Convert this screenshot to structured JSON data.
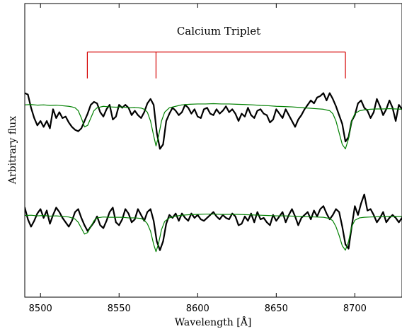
{
  "chart_data": {
    "type": "line",
    "xlabel": "Wavelength [Å]",
    "ylabel": "Arbitrary flux",
    "xlim": [
      8490,
      8730
    ],
    "ylim": [
      0,
      1
    ],
    "x_ticks": [
      8500,
      8550,
      8600,
      8650,
      8700
    ],
    "grid": false,
    "y_tick_labels_shown": false,
    "colors": {
      "observed": "#000000",
      "model": "#008000",
      "annotation": "#d40000"
    },
    "annotation": {
      "text": "Calcium Triplet",
      "bar_level": 0.835,
      "line_bottom": 0.745,
      "x": [
        8529.8,
        8573.5,
        8694.0
      ]
    },
    "series": [
      {
        "role": "observed",
        "offset_group": "upper",
        "x": [
          8490,
          8492,
          8494,
          8496,
          8498,
          8500,
          8502,
          8504,
          8506,
          8508,
          8510,
          8512,
          8514,
          8516,
          8518,
          8520,
          8522,
          8524,
          8526,
          8528,
          8530,
          8532,
          8534,
          8536,
          8538,
          8540,
          8542,
          8544,
          8546,
          8548,
          8550,
          8552,
          8554,
          8556,
          8558,
          8560,
          8562,
          8564,
          8566,
          8568,
          8570,
          8572,
          8574,
          8576,
          8578,
          8580,
          8582,
          8584,
          8586,
          8588,
          8590,
          8592,
          8594,
          8596,
          8598,
          8600,
          8602,
          8604,
          8606,
          8608,
          8610,
          8612,
          8614,
          8616,
          8618,
          8620,
          8622,
          8624,
          8626,
          8628,
          8630,
          8632,
          8634,
          8636,
          8638,
          8640,
          8642,
          8644,
          8646,
          8648,
          8650,
          8652,
          8654,
          8656,
          8658,
          8660,
          8662,
          8664,
          8666,
          8668,
          8670,
          8672,
          8674,
          8676,
          8678,
          8680,
          8682,
          8684,
          8686,
          8688,
          8690,
          8692,
          8694,
          8696,
          8698,
          8700,
          8702,
          8704,
          8706,
          8708,
          8710,
          8712,
          8714,
          8716,
          8718,
          8720,
          8722,
          8724,
          8726,
          8728,
          8730
        ],
        "y": [
          0.695,
          0.69,
          0.645,
          0.61,
          0.585,
          0.6,
          0.58,
          0.6,
          0.575,
          0.64,
          0.61,
          0.63,
          0.61,
          0.615,
          0.595,
          0.58,
          0.57,
          0.565,
          0.575,
          0.6,
          0.625,
          0.655,
          0.665,
          0.66,
          0.63,
          0.615,
          0.64,
          0.655,
          0.605,
          0.615,
          0.655,
          0.645,
          0.655,
          0.645,
          0.62,
          0.635,
          0.62,
          0.61,
          0.63,
          0.66,
          0.675,
          0.655,
          0.56,
          0.505,
          0.52,
          0.6,
          0.625,
          0.645,
          0.635,
          0.62,
          0.63,
          0.655,
          0.645,
          0.625,
          0.64,
          0.615,
          0.61,
          0.64,
          0.645,
          0.625,
          0.62,
          0.64,
          0.625,
          0.635,
          0.65,
          0.63,
          0.64,
          0.625,
          0.6,
          0.625,
          0.615,
          0.645,
          0.62,
          0.61,
          0.635,
          0.64,
          0.625,
          0.62,
          0.595,
          0.605,
          0.64,
          0.625,
          0.61,
          0.64,
          0.62,
          0.6,
          0.58,
          0.605,
          0.62,
          0.64,
          0.655,
          0.67,
          0.66,
          0.68,
          0.685,
          0.695,
          0.67,
          0.695,
          0.675,
          0.65,
          0.62,
          0.59,
          0.53,
          0.545,
          0.6,
          0.62,
          0.66,
          0.67,
          0.645,
          0.635,
          0.61,
          0.63,
          0.675,
          0.65,
          0.62,
          0.64,
          0.67,
          0.645,
          0.6,
          0.655,
          0.64
        ]
      },
      {
        "role": "model",
        "offset_group": "upper",
        "x": [
          8490,
          8494,
          8498,
          8502,
          8506,
          8510,
          8514,
          8518,
          8520,
          8522,
          8524,
          8526,
          8528,
          8530,
          8532,
          8534,
          8536,
          8540,
          8544,
          8548,
          8552,
          8556,
          8560,
          8564,
          8566,
          8568,
          8570,
          8572,
          8573.5,
          8575,
          8577,
          8579,
          8582,
          8586,
          8590,
          8595,
          8600,
          8605,
          8610,
          8615,
          8620,
          8625,
          8630,
          8635,
          8640,
          8645,
          8650,
          8655,
          8660,
          8665,
          8670,
          8675,
          8680,
          8684,
          8686,
          8688,
          8690,
          8692,
          8694,
          8696,
          8698,
          8700,
          8703,
          8706,
          8710,
          8714,
          8718,
          8722,
          8726,
          8730
        ],
        "y": [
          0.655,
          0.656,
          0.654,
          0.655,
          0.653,
          0.654,
          0.652,
          0.65,
          0.648,
          0.645,
          0.635,
          0.61,
          0.58,
          0.585,
          0.61,
          0.635,
          0.645,
          0.65,
          0.648,
          0.647,
          0.648,
          0.645,
          0.646,
          0.644,
          0.64,
          0.63,
          0.6,
          0.55,
          0.515,
          0.545,
          0.6,
          0.63,
          0.645,
          0.65,
          0.655,
          0.657,
          0.658,
          0.658,
          0.659,
          0.658,
          0.658,
          0.657,
          0.656,
          0.655,
          0.653,
          0.652,
          0.65,
          0.649,
          0.648,
          0.646,
          0.644,
          0.642,
          0.64,
          0.635,
          0.625,
          0.6,
          0.56,
          0.52,
          0.505,
          0.54,
          0.6,
          0.625,
          0.635,
          0.638,
          0.64,
          0.641,
          0.641,
          0.642,
          0.641,
          0.64
        ]
      },
      {
        "role": "observed",
        "offset_group": "lower",
        "x": [
          8490,
          8492,
          8494,
          8496,
          8498,
          8500,
          8502,
          8504,
          8506,
          8508,
          8510,
          8512,
          8514,
          8516,
          8518,
          8520,
          8522,
          8524,
          8526,
          8528,
          8530,
          8532,
          8534,
          8536,
          8538,
          8540,
          8542,
          8544,
          8546,
          8548,
          8550,
          8552,
          8554,
          8556,
          8558,
          8560,
          8562,
          8564,
          8566,
          8568,
          8570,
          8572,
          8574,
          8576,
          8578,
          8580,
          8582,
          8584,
          8586,
          8588,
          8590,
          8592,
          8594,
          8596,
          8598,
          8600,
          8602,
          8604,
          8606,
          8608,
          8610,
          8612,
          8614,
          8616,
          8618,
          8620,
          8622,
          8624,
          8626,
          8628,
          8630,
          8632,
          8634,
          8636,
          8638,
          8640,
          8642,
          8644,
          8646,
          8648,
          8650,
          8652,
          8654,
          8656,
          8658,
          8660,
          8662,
          8664,
          8666,
          8668,
          8670,
          8672,
          8674,
          8676,
          8678,
          8680,
          8682,
          8684,
          8686,
          8688,
          8690,
          8692,
          8694,
          8696,
          8698,
          8700,
          8702,
          8704,
          8706,
          8708,
          8710,
          8712,
          8714,
          8716,
          8718,
          8720,
          8722,
          8724,
          8726,
          8728,
          8730
        ],
        "y": [
          0.305,
          0.265,
          0.24,
          0.26,
          0.285,
          0.3,
          0.27,
          0.295,
          0.25,
          0.28,
          0.305,
          0.29,
          0.27,
          0.255,
          0.24,
          0.26,
          0.29,
          0.3,
          0.27,
          0.245,
          0.225,
          0.24,
          0.255,
          0.275,
          0.245,
          0.235,
          0.26,
          0.29,
          0.305,
          0.255,
          0.245,
          0.265,
          0.3,
          0.285,
          0.255,
          0.265,
          0.3,
          0.28,
          0.26,
          0.29,
          0.3,
          0.26,
          0.19,
          0.16,
          0.19,
          0.25,
          0.28,
          0.27,
          0.285,
          0.26,
          0.285,
          0.27,
          0.26,
          0.285,
          0.27,
          0.28,
          0.265,
          0.26,
          0.27,
          0.28,
          0.29,
          0.275,
          0.265,
          0.28,
          0.27,
          0.265,
          0.285,
          0.275,
          0.245,
          0.25,
          0.275,
          0.26,
          0.285,
          0.255,
          0.29,
          0.265,
          0.27,
          0.255,
          0.245,
          0.28,
          0.26,
          0.275,
          0.29,
          0.255,
          0.28,
          0.3,
          0.275,
          0.245,
          0.27,
          0.28,
          0.29,
          0.265,
          0.295,
          0.275,
          0.3,
          0.31,
          0.285,
          0.265,
          0.28,
          0.3,
          0.29,
          0.24,
          0.18,
          0.165,
          0.24,
          0.31,
          0.28,
          0.32,
          0.35,
          0.295,
          0.3,
          0.28,
          0.255,
          0.27,
          0.29,
          0.255,
          0.27,
          0.28,
          0.27,
          0.255,
          0.27
        ]
      },
      {
        "role": "model",
        "offset_group": "lower",
        "x": [
          8490,
          8494,
          8498,
          8502,
          8506,
          8510,
          8514,
          8518,
          8520,
          8522,
          8524,
          8526,
          8528,
          8530,
          8532,
          8534,
          8536,
          8540,
          8544,
          8548,
          8552,
          8556,
          8560,
          8564,
          8566,
          8568,
          8570,
          8572,
          8573.5,
          8575,
          8577,
          8579,
          8582,
          8586,
          8590,
          8595,
          8600,
          8605,
          8610,
          8615,
          8620,
          8625,
          8630,
          8635,
          8640,
          8645,
          8650,
          8655,
          8660,
          8665,
          8670,
          8675,
          8680,
          8684,
          8686,
          8688,
          8690,
          8692,
          8694,
          8696,
          8698,
          8700,
          8703,
          8706,
          8710,
          8714,
          8718,
          8722,
          8726,
          8730
        ],
        "y": [
          0.278,
          0.279,
          0.277,
          0.278,
          0.276,
          0.277,
          0.275,
          0.273,
          0.27,
          0.266,
          0.255,
          0.235,
          0.215,
          0.22,
          0.24,
          0.26,
          0.27,
          0.273,
          0.272,
          0.272,
          0.272,
          0.27,
          0.27,
          0.268,
          0.262,
          0.25,
          0.225,
          0.18,
          0.155,
          0.18,
          0.23,
          0.258,
          0.27,
          0.276,
          0.279,
          0.281,
          0.282,
          0.283,
          0.283,
          0.282,
          0.282,
          0.282,
          0.281,
          0.28,
          0.279,
          0.278,
          0.277,
          0.277,
          0.276,
          0.275,
          0.274,
          0.273,
          0.272,
          0.268,
          0.26,
          0.24,
          0.21,
          0.175,
          0.16,
          0.19,
          0.24,
          0.262,
          0.27,
          0.272,
          0.273,
          0.274,
          0.275,
          0.275,
          0.275,
          0.275
        ]
      }
    ]
  }
}
